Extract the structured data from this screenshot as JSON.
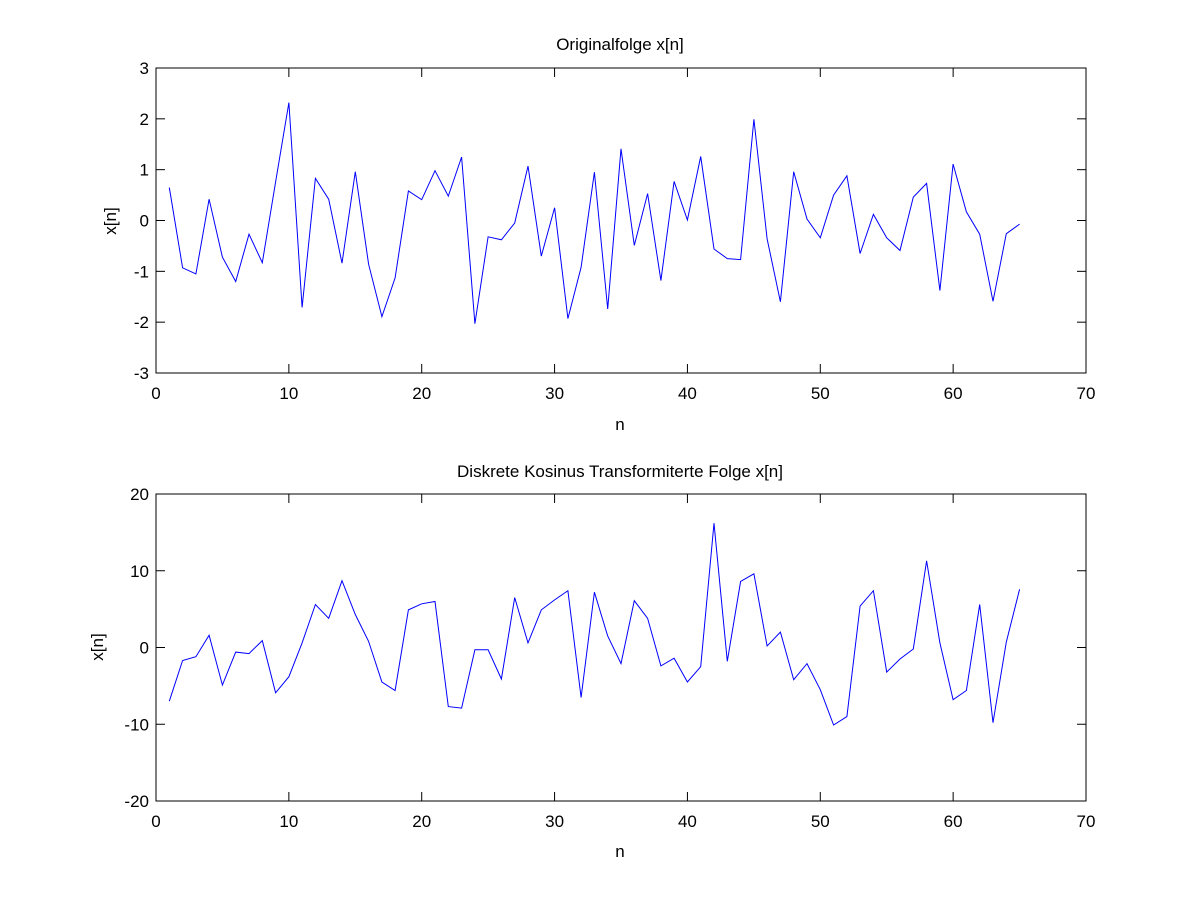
{
  "chart_data": [
    {
      "type": "line",
      "title": "Originalfolge x[n]",
      "xlabel": "n",
      "ylabel": "x[n]",
      "xlim": [
        0,
        70
      ],
      "ylim": [
        -3,
        3
      ],
      "xticks": [
        "0",
        "10",
        "20",
        "30",
        "40",
        "50",
        "60",
        "70"
      ],
      "yticks": [
        "3",
        "2",
        "1",
        "0",
        "-1",
        "-2",
        "-3"
      ],
      "grid": false,
      "color": "#0000ff",
      "x": [
        1,
        2,
        3,
        4,
        5,
        6,
        7,
        8,
        9,
        10,
        11,
        12,
        13,
        14,
        15,
        16,
        17,
        18,
        19,
        20,
        21,
        22,
        23,
        24,
        25,
        26,
        27,
        28,
        29,
        30,
        31,
        32,
        33,
        34,
        35,
        36,
        37,
        38,
        39,
        40,
        41,
        42,
        43,
        44,
        45,
        46,
        47,
        48,
        49,
        50,
        51,
        52,
        53,
        54,
        55,
        56,
        57,
        58,
        59,
        60,
        61,
        62,
        63,
        64,
        65
      ],
      "y": [
        0.65,
        -0.93,
        -1.05,
        0.42,
        -0.72,
        -1.2,
        -0.27,
        -0.83,
        0.76,
        2.32,
        -1.71,
        0.83,
        0.42,
        -0.84,
        0.96,
        -0.86,
        -1.89,
        -1.13,
        0.58,
        0.41,
        0.98,
        0.48,
        1.25,
        -2.03,
        -0.32,
        -0.38,
        -0.05,
        1.07,
        -0.7,
        0.25,
        -1.93,
        -0.92,
        0.95,
        -1.74,
        1.41,
        -0.49,
        0.53,
        -1.18,
        0.77,
        0.01,
        1.26,
        -0.56,
        -0.75,
        -0.77,
        1.99,
        -0.36,
        -1.6,
        0.96,
        0.03,
        -0.34,
        0.5,
        0.88,
        -0.65,
        0.12,
        -0.34,
        -0.59,
        0.46,
        0.73,
        -1.38,
        1.11,
        0.17,
        -0.27,
        -1.59,
        -0.26,
        -0.07
      ]
    },
    {
      "type": "line",
      "title": "Diskrete Kosinus Transformiterte Folge x[n]",
      "xlabel": "n",
      "ylabel": "x[n]",
      "xlim": [
        0,
        70
      ],
      "ylim": [
        -20,
        20
      ],
      "xticks": [
        "0",
        "10",
        "20",
        "30",
        "40",
        "50",
        "60",
        "70"
      ],
      "yticks": [
        "20",
        "10",
        "0",
        "-10",
        "-20"
      ],
      "grid": false,
      "color": "#0000ff",
      "x": [
        1,
        2,
        3,
        4,
        5,
        6,
        7,
        8,
        9,
        10,
        11,
        12,
        13,
        14,
        15,
        16,
        17,
        18,
        19,
        20,
        21,
        22,
        23,
        24,
        25,
        26,
        27,
        28,
        29,
        30,
        31,
        32,
        33,
        34,
        35,
        36,
        37,
        38,
        39,
        40,
        41,
        42,
        43,
        44,
        45,
        46,
        47,
        48,
        49,
        50,
        51,
        52,
        53,
        54,
        55,
        56,
        57,
        58,
        59,
        60,
        61,
        62,
        63,
        64,
        65
      ],
      "y": [
        -7.0,
        -1.7,
        -1.2,
        1.6,
        -4.9,
        -0.6,
        -0.8,
        0.9,
        -5.9,
        -3.8,
        0.6,
        5.6,
        3.8,
        8.7,
        4.3,
        0.8,
        -4.5,
        -5.6,
        4.9,
        5.7,
        6.0,
        -7.7,
        -7.9,
        -0.3,
        -0.3,
        -4.1,
        6.5,
        0.6,
        4.9,
        6.2,
        7.4,
        -6.5,
        7.2,
        1.5,
        -2.1,
        6.1,
        3.8,
        -2.4,
        -1.4,
        -4.5,
        -2.5,
        16.2,
        -1.8,
        8.6,
        9.6,
        0.2,
        2.0,
        -4.2,
        -2.1,
        -5.5,
        -10.1,
        -9.0,
        5.4,
        7.4,
        -3.2,
        -1.5,
        -0.2,
        11.3,
        0.6,
        -6.8,
        -5.6,
        5.6,
        -9.8,
        0.7,
        7.6
      ]
    }
  ]
}
